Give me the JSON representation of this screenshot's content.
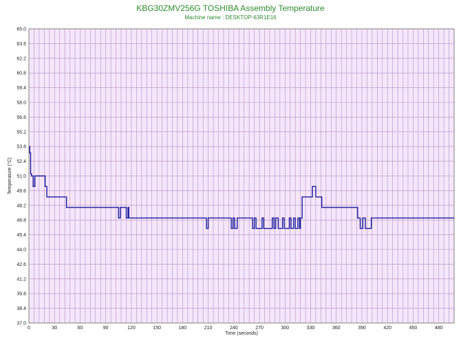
{
  "chart_data": {
    "type": "line",
    "title": "KBG30ZMV256G TOSHIBA Assembly Temperature",
    "subtitle": "Machine name : DESKTOP-63R1E16",
    "xlabel": "Time (seconds)",
    "ylabel": "Temperature (°C)",
    "xlim": [
      0,
      498
    ],
    "ylim": [
      37.0,
      65.0
    ],
    "x_ticks": [
      0,
      30,
      60,
      90,
      120,
      150,
      180,
      210,
      240,
      270,
      300,
      330,
      360,
      390,
      420,
      450,
      480
    ],
    "y_ticks": [
      "37.0",
      "38.4",
      "39.8",
      "41.2",
      "42.6",
      "44.0",
      "45.4",
      "46.8",
      "48.2",
      "49.6",
      "51.0",
      "52.4",
      "53.8",
      "55.2",
      "56.6",
      "58.0",
      "59.4",
      "60.8",
      "62.2",
      "63.6",
      "65.0"
    ],
    "grid": true,
    "colors": {
      "background": "#f5e6fb",
      "grid": "#b090c0",
      "series": "#1a1a9a",
      "title": "#2e8b2e"
    },
    "series": [
      {
        "values_x": [
          0,
          1,
          1,
          2,
          2,
          3,
          3,
          5,
          5,
          7,
          7,
          10,
          10,
          19,
          19,
          21,
          21,
          22,
          22,
          44,
          44,
          105,
          105,
          107,
          107,
          114,
          114,
          116,
          116,
          117,
          117,
          118,
          118,
          120,
          120,
          121,
          121,
          208,
          208,
          210,
          210,
          237,
          237,
          239,
          239,
          241,
          241,
          244,
          244,
          262,
          262,
          264,
          264,
          266,
          266,
          273,
          273,
          275,
          275,
          285,
          285,
          287,
          287,
          289,
          289,
          292,
          292,
          297,
          297,
          299,
          299,
          305,
          305,
          307,
          307,
          310,
          310,
          312,
          312,
          315,
          315,
          317,
          317,
          318,
          318,
          320,
          320,
          332,
          332,
          336,
          336,
          343,
          343,
          385,
          385,
          388,
          388,
          391,
          391,
          394,
          394,
          401,
          401,
          498
        ],
        "values_y": [
          53.8,
          53.8,
          53.2,
          53.2,
          51.2,
          51.2,
          51.0,
          51.0,
          50.0,
          50.0,
          51.0,
          51.0,
          51.0,
          51.0,
          50.0,
          50.0,
          49.0,
          49.0,
          49.0,
          49.0,
          48.0,
          48.0,
          47.0,
          47.0,
          48.0,
          48.0,
          47.0,
          47.0,
          48.0,
          48.0,
          47.0,
          47.0,
          47.0,
          47.0,
          47.0,
          47.0,
          47.0,
          47.0,
          46.0,
          46.0,
          47.0,
          47.0,
          46.0,
          46.0,
          47.0,
          47.0,
          46.0,
          46.0,
          47.0,
          47.0,
          46.0,
          46.0,
          47.0,
          47.0,
          46.0,
          46.0,
          47.0,
          47.0,
          46.0,
          46.0,
          47.0,
          47.0,
          46.0,
          46.0,
          47.0,
          47.0,
          46.0,
          46.0,
          47.0,
          47.0,
          46.0,
          46.0,
          47.0,
          47.0,
          46.0,
          46.0,
          47.0,
          47.0,
          46.0,
          46.0,
          47.0,
          47.0,
          46.0,
          46.0,
          47.0,
          47.0,
          49.0,
          49.0,
          50.0,
          50.0,
          49.0,
          49.0,
          48.0,
          48.0,
          47.0,
          47.0,
          46.0,
          46.0,
          47.0,
          47.0,
          46.0,
          46.0,
          47.0,
          47.0
        ]
      }
    ]
  }
}
